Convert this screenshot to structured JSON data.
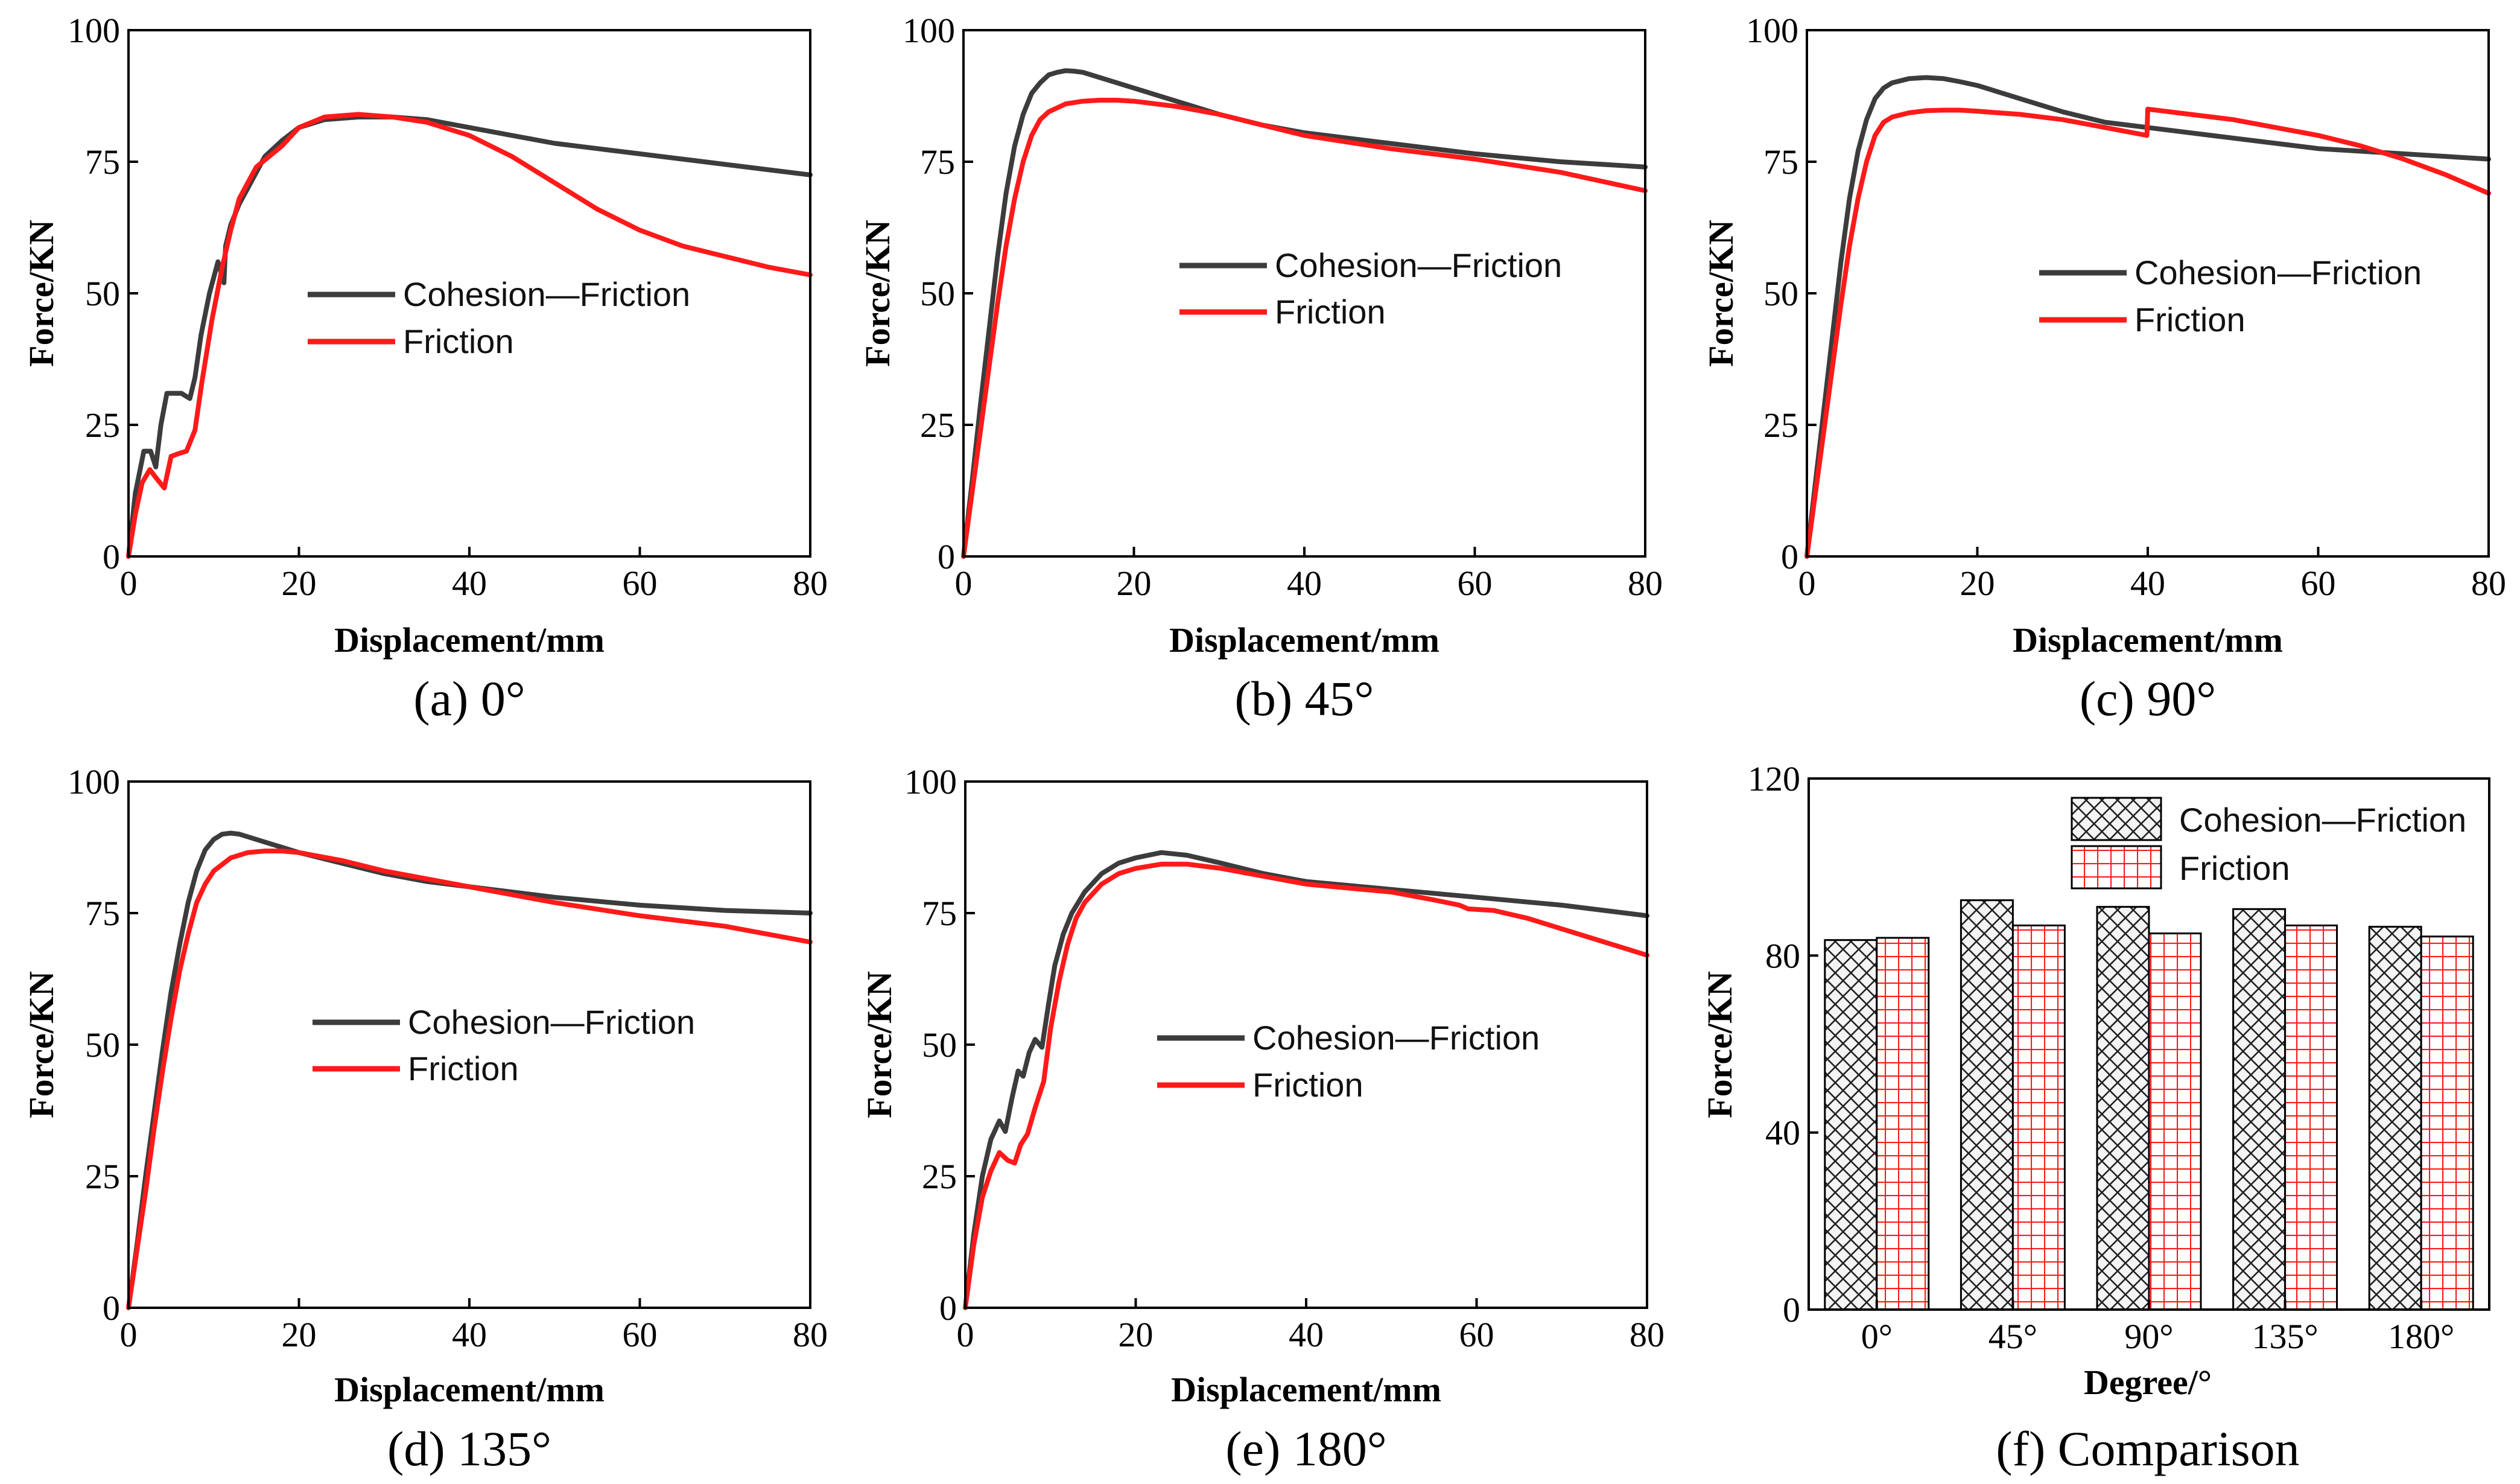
{
  "colors": {
    "cohesion_friction": "#3c3c3c",
    "friction": "#ff1a1a"
  },
  "chart_data": [
    {
      "type": "line",
      "panel": "a",
      "caption": "(a) 0°",
      "xlabel": "Displacement/mm",
      "ylabel": "Force/KN",
      "xlim": [
        0,
        80
      ],
      "ylim": [
        0,
        100
      ],
      "xticks": [
        0,
        20,
        40,
        60,
        80
      ],
      "yticks": [
        0,
        25,
        50,
        75,
        100
      ],
      "legend_position": "center-right",
      "series": [
        {
          "name": "Cohesion—Friction",
          "color": "#3c3c3c",
          "x": [
            0,
            0.8,
            1.8,
            2.6,
            3.2,
            3.8,
            4.5,
            5.2,
            6.2,
            7.2,
            7.8,
            8.5,
            9.5,
            10.5,
            11.2,
            11.4,
            12,
            13,
            14,
            16,
            18,
            20,
            23,
            27,
            31,
            35,
            40,
            45,
            50,
            55,
            60,
            65,
            70,
            75,
            80
          ],
          "y": [
            0,
            12,
            20,
            20,
            17,
            25,
            31,
            31,
            31,
            30,
            34,
            42,
            50,
            56,
            52,
            59,
            63,
            67,
            70,
            76,
            79,
            81.5,
            83,
            83.5,
            83.5,
            83,
            81.5,
            80,
            78.5,
            77.5,
            76.5,
            75.5,
            74.5,
            73.5,
            72.5
          ]
        },
        {
          "name": "Friction",
          "color": "#ff1a1a",
          "x": [
            0,
            0.8,
            1.6,
            2.5,
            3.2,
            4.2,
            5,
            5.8,
            6.8,
            7.8,
            8.6,
            9.8,
            11,
            12,
            13,
            15,
            18,
            20,
            23,
            27,
            31,
            35,
            40,
            45,
            50,
            55,
            60,
            65,
            70,
            75,
            80
          ],
          "y": [
            0,
            8,
            14,
            16.5,
            15,
            13,
            19,
            19.5,
            20,
            24,
            33,
            45,
            55,
            62,
            68,
            74,
            78,
            81.5,
            83.5,
            84,
            83.5,
            82.5,
            80,
            76,
            71,
            66,
            62,
            59,
            57,
            55,
            53.5
          ]
        }
      ]
    },
    {
      "type": "line",
      "panel": "b",
      "caption": "(b) 45°",
      "xlabel": "Displacement/mm",
      "ylabel": "Force/KN",
      "xlim": [
        0,
        80
      ],
      "ylim": [
        0,
        100
      ],
      "xticks": [
        0,
        20,
        40,
        60,
        80
      ],
      "yticks": [
        0,
        25,
        50,
        75,
        100
      ],
      "legend_position": "center-right",
      "series": [
        {
          "name": "Cohesion—Friction",
          "color": "#3c3c3c",
          "x": [
            0,
            1,
            2,
            3,
            4,
            5,
            6,
            7,
            8,
            9,
            10,
            11,
            12,
            13,
            14,
            16,
            18,
            20,
            25,
            30,
            35,
            40,
            50,
            60,
            70,
            80
          ],
          "y": [
            0,
            14,
            29,
            43,
            57,
            69,
            78,
            84,
            88,
            90,
            91.5,
            92,
            92.3,
            92.2,
            92,
            91,
            90,
            89,
            86.5,
            84,
            82,
            80.5,
            78.5,
            76.5,
            75,
            74
          ]
        },
        {
          "name": "Friction",
          "color": "#ff1a1a",
          "x": [
            0,
            1,
            2,
            3,
            4,
            5,
            6,
            7,
            8,
            9,
            10,
            12,
            14,
            16,
            18,
            20,
            25,
            30,
            35,
            40,
            50,
            60,
            70,
            80
          ],
          "y": [
            0,
            12,
            24,
            36,
            48,
            59,
            68,
            75,
            80,
            83,
            84.5,
            86,
            86.5,
            86.7,
            86.7,
            86.5,
            85.5,
            84,
            82,
            80,
            77.5,
            75.5,
            73,
            69.5
          ]
        }
      ]
    },
    {
      "type": "line",
      "panel": "c",
      "caption": "(c) 90°",
      "xlabel": "Displacement/mm",
      "ylabel": "Force/KN",
      "xlim": [
        0,
        80
      ],
      "ylim": [
        0,
        100
      ],
      "xticks": [
        0,
        20,
        40,
        60,
        80
      ],
      "yticks": [
        0,
        25,
        50,
        75,
        100
      ],
      "legend_position": "center-right",
      "series": [
        {
          "name": "Cohesion—Friction",
          "color": "#3c3c3c",
          "x": [
            0,
            1,
            2,
            3,
            4,
            5,
            6,
            7,
            8,
            9,
            10,
            12,
            14,
            16,
            18,
            20,
            25,
            30,
            35,
            40,
            50,
            60,
            70,
            80
          ],
          "y": [
            0,
            14,
            28,
            42,
            56,
            68,
            77,
            83,
            87,
            89,
            90,
            90.8,
            91,
            90.8,
            90.2,
            89.5,
            87,
            84.5,
            82.5,
            81.5,
            79.5,
            77.5,
            76.5,
            75.5
          ]
        },
        {
          "name": "Friction",
          "color": "#ff1a1a",
          "x": [
            0,
            1,
            2,
            3,
            4,
            5,
            6,
            7,
            8,
            9,
            10,
            12,
            14,
            16,
            18,
            20,
            25,
            30,
            35,
            39.9,
            40,
            45,
            50,
            55,
            60,
            65,
            70,
            75,
            80
          ],
          "y": [
            0,
            12,
            24,
            36,
            48,
            59,
            68,
            75,
            80,
            82.5,
            83.5,
            84.3,
            84.7,
            84.8,
            84.8,
            84.6,
            84,
            83,
            81.5,
            80,
            85,
            84,
            83,
            81.5,
            80,
            78,
            75.5,
            72.5,
            69
          ]
        }
      ]
    },
    {
      "type": "line",
      "panel": "d",
      "caption": "(d) 135°",
      "xlabel": "Displacement/mm",
      "ylabel": "Force/KN",
      "xlim": [
        0,
        80
      ],
      "ylim": [
        0,
        100
      ],
      "xticks": [
        0,
        20,
        40,
        60,
        80
      ],
      "yticks": [
        0,
        25,
        50,
        75,
        100
      ],
      "legend_position": "center-right",
      "series": [
        {
          "name": "Cohesion—Friction",
          "color": "#3c3c3c",
          "x": [
            0,
            1,
            2,
            3,
            4,
            5,
            6,
            7,
            8,
            9,
            10,
            11,
            12,
            13,
            14,
            16,
            18,
            20,
            25,
            30,
            35,
            40,
            50,
            60,
            70,
            80
          ],
          "y": [
            0,
            12,
            25,
            37,
            49,
            60,
            69,
            77,
            83,
            87,
            89,
            90,
            90.2,
            90,
            89.5,
            88.5,
            87.5,
            86.5,
            84.5,
            82.5,
            81,
            80,
            78,
            76.5,
            75.5,
            75
          ]
        },
        {
          "name": "Friction",
          "color": "#ff1a1a",
          "x": [
            0,
            1,
            2,
            3,
            4,
            5,
            6,
            7,
            8,
            9,
            10,
            12,
            14,
            16,
            18,
            20,
            25,
            30,
            35,
            40,
            50,
            60,
            70,
            80
          ],
          "y": [
            0,
            11,
            22,
            34,
            45,
            55,
            64,
            71,
            77,
            80.5,
            83,
            85.5,
            86.5,
            86.8,
            86.8,
            86.5,
            85,
            83,
            81.5,
            80,
            77,
            74.5,
            72.5,
            69.5
          ]
        }
      ]
    },
    {
      "type": "line",
      "panel": "e",
      "caption": "(e) 180°",
      "xlabel": "Displacement/mm",
      "ylabel": "Force/KN",
      "xlim": [
        0,
        80
      ],
      "ylim": [
        0,
        100
      ],
      "xticks": [
        0,
        20,
        40,
        60,
        80
      ],
      "yticks": [
        0,
        25,
        50,
        75,
        100
      ],
      "legend_position": "center-right",
      "series": [
        {
          "name": "Cohesion—Friction",
          "color": "#3c3c3c",
          "x": [
            0,
            1,
            2,
            3,
            4,
            4.7,
            5.5,
            6.2,
            6.8,
            7.5,
            8.2,
            9,
            9.8,
            10.5,
            11.5,
            12.5,
            14,
            16,
            18,
            20,
            23,
            26,
            30,
            35,
            40,
            50,
            60,
            70,
            80
          ],
          "y": [
            0,
            14,
            25,
            32,
            35.5,
            33.5,
            40,
            45,
            44,
            48.5,
            51,
            49.5,
            58,
            65,
            71,
            75,
            79,
            82.5,
            84.5,
            85.5,
            86.5,
            86,
            84.5,
            82.5,
            81,
            79.5,
            78,
            76.5,
            74.5
          ]
        },
        {
          "name": "Friction",
          "color": "#ff1a1a",
          "x": [
            0,
            1,
            2,
            3,
            4,
            5,
            5.8,
            6.5,
            7.3,
            8.2,
            9.2,
            10,
            11,
            12,
            13,
            14,
            16,
            18,
            20,
            23,
            26,
            30,
            35,
            40,
            50,
            55,
            58,
            59,
            62,
            66,
            70,
            75,
            80
          ],
          "y": [
            0,
            12,
            21,
            26,
            29.5,
            28,
            27.5,
            31,
            33,
            38,
            43,
            53,
            62,
            69,
            74,
            77,
            80.5,
            82.5,
            83.5,
            84.3,
            84.3,
            83.5,
            82,
            80.5,
            79,
            77.5,
            76.5,
            75.8,
            75.5,
            74,
            72,
            69.5,
            67
          ]
        }
      ]
    },
    {
      "type": "bar",
      "panel": "f",
      "caption": "(f) Comparison",
      "xlabel": "Degree/°",
      "ylabel": "Force/KN",
      "ylim": [
        0,
        120
      ],
      "yticks": [
        0,
        40,
        80,
        120
      ],
      "categories": [
        "0°",
        "45°",
        "90°",
        "135°",
        "180°"
      ],
      "legend_position": "top-right",
      "series": [
        {
          "name": "Cohesion—Friction",
          "color": "#3c3c3c",
          "pattern": "crosshatch",
          "values": [
            83.5,
            92.5,
            91,
            90.5,
            86.5
          ]
        },
        {
          "name": "Friction",
          "color": "#ff1a1a",
          "pattern": "grid",
          "values": [
            84,
            86.8,
            85,
            86.8,
            84.3
          ]
        }
      ]
    }
  ]
}
